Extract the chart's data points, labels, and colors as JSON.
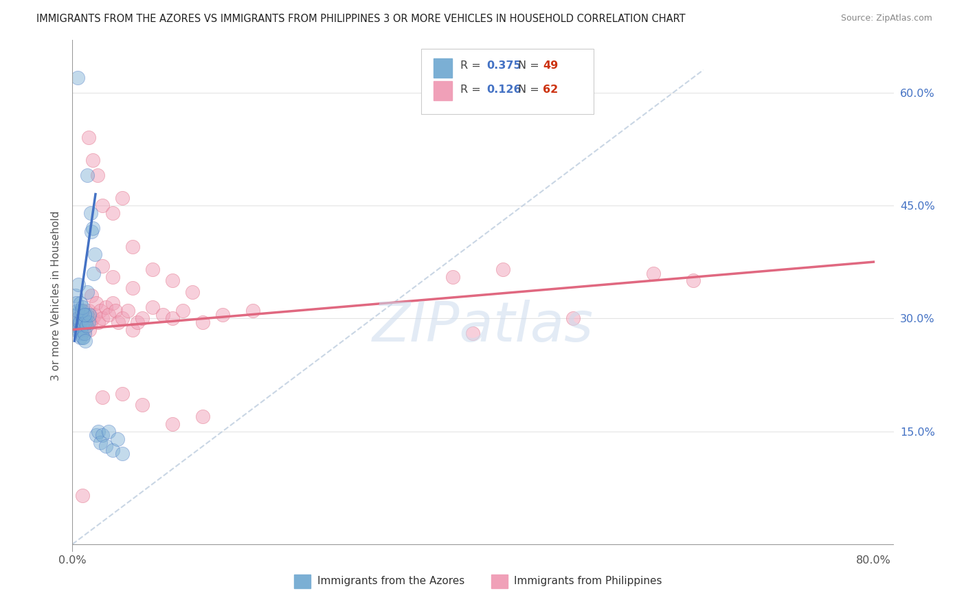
{
  "title": "IMMIGRANTS FROM THE AZORES VS IMMIGRANTS FROM PHILIPPINES 3 OR MORE VEHICLES IN HOUSEHOLD CORRELATION CHART",
  "source": "Source: ZipAtlas.com",
  "ylabel": "3 or more Vehicles in Household",
  "xlim": [
    0.0,
    0.82
  ],
  "ylim": [
    -0.01,
    0.67
  ],
  "ytick_positions": [
    0.0,
    0.15,
    0.3,
    0.45,
    0.6
  ],
  "ytick_labels_right": [
    "",
    "15.0%",
    "30.0%",
    "45.0%",
    "60.0%"
  ],
  "xtick_positions": [
    0.0,
    0.2,
    0.4,
    0.6,
    0.8
  ],
  "xtick_labels": [
    "0.0%",
    "",
    "",
    "",
    "80.0%"
  ],
  "azores_scatter_color": "#7bafd4",
  "azores_line_color": "#4472c4",
  "philippines_scatter_color": "#f0a0b8",
  "philippines_line_color": "#e06880",
  "diagonal_color": "#c0cfe0",
  "watermark_color": "#ccdcee",
  "watermark_text": "ZIPatlas",
  "legend_R_azores": "0.375",
  "legend_N_azores": "49",
  "legend_R_philippines": "0.126",
  "legend_N_philippines": "62",
  "label_azores": "Immigrants from the Azores",
  "label_philippines": "Immigrants from Philippines",
  "background_color": "#ffffff",
  "grid_color": "#e4e4e4",
  "label_color_blue": "#4472c4",
  "label_color_red": "#cc3311",
  "azores_x": [
    0.005,
    0.003,
    0.004,
    0.004,
    0.005,
    0.006,
    0.006,
    0.007,
    0.007,
    0.008,
    0.008,
    0.009,
    0.009,
    0.01,
    0.01,
    0.011,
    0.011,
    0.012,
    0.012,
    0.013,
    0.013,
    0.014,
    0.014,
    0.015,
    0.016,
    0.017,
    0.018,
    0.019,
    0.02,
    0.021,
    0.022,
    0.024,
    0.026,
    0.028,
    0.03,
    0.033,
    0.036,
    0.04,
    0.045,
    0.05,
    0.003,
    0.004,
    0.005,
    0.006,
    0.008,
    0.009,
    0.01,
    0.012,
    0.015
  ],
  "azores_y": [
    0.62,
    0.29,
    0.305,
    0.285,
    0.295,
    0.3,
    0.285,
    0.295,
    0.31,
    0.285,
    0.275,
    0.29,
    0.28,
    0.3,
    0.275,
    0.295,
    0.275,
    0.305,
    0.28,
    0.295,
    0.27,
    0.305,
    0.29,
    0.335,
    0.295,
    0.305,
    0.44,
    0.415,
    0.42,
    0.36,
    0.385,
    0.145,
    0.15,
    0.135,
    0.145,
    0.13,
    0.15,
    0.125,
    0.14,
    0.12,
    0.33,
    0.32,
    0.31,
    0.345,
    0.32,
    0.31,
    0.315,
    0.305,
    0.49
  ],
  "philippines_x": [
    0.005,
    0.006,
    0.007,
    0.008,
    0.009,
    0.01,
    0.011,
    0.012,
    0.013,
    0.015,
    0.016,
    0.017,
    0.018,
    0.019,
    0.02,
    0.022,
    0.024,
    0.026,
    0.028,
    0.03,
    0.033,
    0.036,
    0.04,
    0.043,
    0.046,
    0.05,
    0.055,
    0.06,
    0.065,
    0.07,
    0.08,
    0.09,
    0.1,
    0.11,
    0.13,
    0.15,
    0.18,
    0.03,
    0.04,
    0.05,
    0.06,
    0.08,
    0.1,
    0.12,
    0.016,
    0.02,
    0.025,
    0.03,
    0.04,
    0.06,
    0.38,
    0.43,
    0.5,
    0.58,
    0.62,
    0.03,
    0.05,
    0.07,
    0.1,
    0.13,
    0.01,
    0.4
  ],
  "philippines_y": [
    0.3,
    0.29,
    0.295,
    0.285,
    0.3,
    0.29,
    0.31,
    0.285,
    0.3,
    0.295,
    0.31,
    0.285,
    0.295,
    0.33,
    0.3,
    0.305,
    0.32,
    0.295,
    0.31,
    0.3,
    0.315,
    0.305,
    0.32,
    0.31,
    0.295,
    0.3,
    0.31,
    0.285,
    0.295,
    0.3,
    0.315,
    0.305,
    0.3,
    0.31,
    0.295,
    0.305,
    0.31,
    0.45,
    0.44,
    0.46,
    0.395,
    0.365,
    0.35,
    0.335,
    0.54,
    0.51,
    0.49,
    0.37,
    0.355,
    0.34,
    0.355,
    0.365,
    0.3,
    0.36,
    0.35,
    0.195,
    0.2,
    0.185,
    0.16,
    0.17,
    0.065,
    0.28
  ]
}
